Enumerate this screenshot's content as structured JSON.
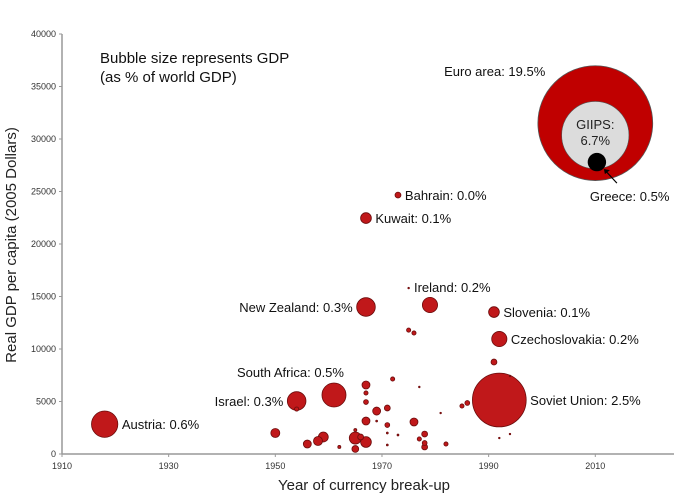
{
  "chart_data": {
    "type": "scatter",
    "subtype": "bubble",
    "annotation": [
      "Bubble size represents GDP",
      "(as % of world GDP)"
    ],
    "xlabel": "Year of currency break-up",
    "ylabel": "Real GDP per capita (2005 Dollars)",
    "xlim": [
      1910,
      2025
    ],
    "ylim": [
      0,
      40000
    ],
    "xticks": [
      1910,
      1930,
      1950,
      1970,
      1990,
      2010
    ],
    "yticks": [
      0,
      5000,
      10000,
      15000,
      20000,
      25000,
      30000,
      35000,
      40000
    ],
    "grid": false,
    "colors": {
      "bubble": "#c0181a",
      "bubble_edge": "#6a0c0c",
      "euro": "#c00000",
      "giips": "#dcdcdc",
      "greece": "#000000",
      "axis": "#999999"
    },
    "labeled_points": [
      {
        "label": "Austria: 0.6%",
        "year": 1918,
        "gdp_per_capita": 2840,
        "gdp_share": 0.6,
        "label_side": "right"
      },
      {
        "label": "Israel: 0.3%",
        "year": 1954,
        "gdp_per_capita": 5050,
        "gdp_share": 0.3,
        "label_side": "left"
      },
      {
        "label": "South Africa: 0.5%",
        "year": 1961,
        "gdp_per_capita": 5620,
        "gdp_share": 0.5,
        "label_side": "above-left"
      },
      {
        "label": "New Zealand: 0.3%",
        "year": 1967,
        "gdp_per_capita": 14000,
        "gdp_share": 0.3,
        "label_side": "left"
      },
      {
        "label": "Kuwait: 0.1%",
        "year": 1967,
        "gdp_per_capita": 22470,
        "gdp_share": 0.1,
        "label_side": "right"
      },
      {
        "label": "Bahrain: 0.0%",
        "year": 1973,
        "gdp_per_capita": 24660,
        "gdp_share": 0.03,
        "label_side": "right"
      },
      {
        "label": "Ireland: 0.2%",
        "year": 1979,
        "gdp_per_capita": 14190,
        "gdp_share": 0.2,
        "label_side": "above"
      },
      {
        "label": "Slovenia: 0.1%",
        "year": 1991,
        "gdp_per_capita": 13520,
        "gdp_share": 0.1,
        "label_side": "right"
      },
      {
        "label": "Czechoslovakia: 0.2%",
        "year": 1992,
        "gdp_per_capita": 10950,
        "gdp_share": 0.2,
        "label_side": "right"
      },
      {
        "label": "Soviet Union: 2.5%",
        "year": 1992,
        "gdp_per_capita": 5140,
        "gdp_share": 2.5,
        "label_side": "right"
      }
    ],
    "unlabeled_points": [
      {
        "year": 1950,
        "gdp_per_capita": 2000,
        "gdp_share": 0.07
      },
      {
        "year": 1956,
        "gdp_per_capita": 950,
        "gdp_share": 0.055
      },
      {
        "year": 1958,
        "gdp_per_capita": 1240,
        "gdp_share": 0.07
      },
      {
        "year": 1959,
        "gdp_per_capita": 1620,
        "gdp_share": 0.085
      },
      {
        "year": 1954,
        "gdp_per_capita": 4280,
        "gdp_share": 0.015
      },
      {
        "year": 1962,
        "gdp_per_capita": 670,
        "gdp_share": 0.008
      },
      {
        "year": 1965,
        "gdp_per_capita": 1520,
        "gdp_share": 0.125
      },
      {
        "year": 1965,
        "gdp_per_capita": 480,
        "gdp_share": 0.04
      },
      {
        "year": 1966,
        "gdp_per_capita": 1620,
        "gdp_share": 0.03
      },
      {
        "year": 1967,
        "gdp_per_capita": 1140,
        "gdp_share": 0.1
      },
      {
        "year": 1965,
        "gdp_per_capita": 2280,
        "gdp_share": 0.008
      },
      {
        "year": 1967,
        "gdp_per_capita": 6570,
        "gdp_share": 0.055
      },
      {
        "year": 1967,
        "gdp_per_capita": 5810,
        "gdp_share": 0.015
      },
      {
        "year": 1967,
        "gdp_per_capita": 4950,
        "gdp_share": 0.02
      },
      {
        "year": 1967,
        "gdp_per_capita": 3140,
        "gdp_share": 0.055
      },
      {
        "year": 1969,
        "gdp_per_capita": 4090,
        "gdp_share": 0.055
      },
      {
        "year": 1969,
        "gdp_per_capita": 3140,
        "gdp_share": 0.003
      },
      {
        "year": 1971,
        "gdp_per_capita": 4380,
        "gdp_share": 0.03
      },
      {
        "year": 1971,
        "gdp_per_capita": 2760,
        "gdp_share": 0.02
      },
      {
        "year": 1971,
        "gdp_per_capita": 2000,
        "gdp_share": 0.003
      },
      {
        "year": 1971,
        "gdp_per_capita": 860,
        "gdp_share": 0.003
      },
      {
        "year": 1972,
        "gdp_per_capita": 7140,
        "gdp_share": 0.015
      },
      {
        "year": 1973,
        "gdp_per_capita": 1810,
        "gdp_share": 0.003
      },
      {
        "year": 1975,
        "gdp_per_capita": 15800,
        "gdp_share": 0.002
      },
      {
        "year": 1975,
        "gdp_per_capita": 11800,
        "gdp_share": 0.015
      },
      {
        "year": 1976,
        "gdp_per_capita": 11520,
        "gdp_share": 0.015
      },
      {
        "year": 1976,
        "gdp_per_capita": 3050,
        "gdp_share": 0.055
      },
      {
        "year": 1977,
        "gdp_per_capita": 6380,
        "gdp_share": 0.001
      },
      {
        "year": 1977,
        "gdp_per_capita": 1430,
        "gdp_share": 0.015
      },
      {
        "year": 1978,
        "gdp_per_capita": 1900,
        "gdp_share": 0.03
      },
      {
        "year": 1978,
        "gdp_per_capita": 1050,
        "gdp_share": 0.02
      },
      {
        "year": 1978,
        "gdp_per_capita": 670,
        "gdp_share": 0.03
      },
      {
        "year": 1982,
        "gdp_per_capita": 950,
        "gdp_share": 0.015
      },
      {
        "year": 1981,
        "gdp_per_capita": 3900,
        "gdp_share": 0.001
      },
      {
        "year": 1985,
        "gdp_per_capita": 4570,
        "gdp_share": 0.015
      },
      {
        "year": 1986,
        "gdp_per_capita": 4860,
        "gdp_share": 0.02
      },
      {
        "year": 1991,
        "gdp_per_capita": 8760,
        "gdp_share": 0.03
      },
      {
        "year": 1994,
        "gdp_per_capita": 7430,
        "gdp_share": 0.001
      },
      {
        "year": 1994,
        "gdp_per_capita": 1900,
        "gdp_share": 0.001
      },
      {
        "year": 1992,
        "gdp_per_capita": 1520,
        "gdp_share": 0.001
      }
    ],
    "euro_inset": {
      "euro": {
        "label": "Euro area: 19.5%",
        "year": 2010,
        "gdp_per_capita": 31510,
        "gdp_share": 19.5
      },
      "giips": {
        "label_line1": "GIIPS:",
        "label_line2": "6.7%",
        "year": 2010,
        "gdp_per_capita": 30370,
        "gdp_share": 6.7
      },
      "greece": {
        "label": "Greece: 0.5%",
        "year": 2010.3,
        "gdp_per_capita": 27800,
        "gdp_share": 0.5
      }
    }
  }
}
